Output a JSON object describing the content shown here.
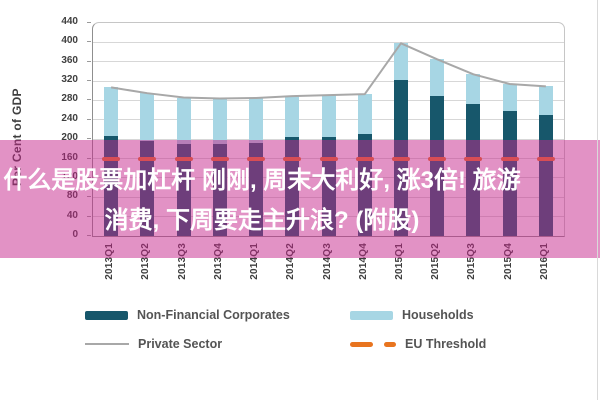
{
  "chart_data": {
    "type": "bar",
    "subtype": "stacked-bar-with-line",
    "title": "",
    "xlabel": "",
    "ylabel": "Per Cent of GDP",
    "ylim": [
      0,
      440
    ],
    "ytick_step": 40,
    "grid": true,
    "legend_position": "bottom",
    "categories": [
      "2013Q1",
      "2013Q2",
      "2013Q3",
      "2013Q4",
      "2014Q1",
      "2014Q2",
      "2014Q3",
      "2014Q4",
      "2015Q1",
      "2015Q2",
      "2015Q3",
      "2015Q4",
      "2016Q1"
    ],
    "series": [
      {
        "name": "Non-Financial Corporates",
        "role": "bar",
        "color": "#17576b",
        "values": [
          207,
          196,
          191,
          190,
          193,
          204,
          205,
          210,
          323,
          290,
          272,
          258,
          250
        ]
      },
      {
        "name": "Households",
        "role": "bar",
        "color": "#a7d6e4",
        "values": [
          100,
          99,
          95,
          94,
          92,
          85,
          86,
          83,
          75,
          75,
          62,
          56,
          59
        ]
      },
      {
        "name": "Private Sector",
        "role": "line",
        "color": "#a8a8a8",
        "values": [
          307,
          295,
          286,
          284,
          285,
          289,
          291,
          293,
          398,
          365,
          334,
          314,
          309
        ]
      },
      {
        "name": "EU Threshold",
        "role": "threshold",
        "color": "#e8741f",
        "value": 160
      }
    ]
  },
  "banner": {
    "overlay_color": "rgba(197,37,139,0.5)",
    "text_color": "#ffffff",
    "lines": [
      "什么是股票加杠杆 刚刚, 周末大利好, 涨3倍! 旅游",
      "消费, 下周要走主升浪? (附股)"
    ]
  },
  "axis_colors": {
    "grid": "#d7d7d7",
    "axis": "#8f8f8f",
    "tick_text": "#3f3f3f",
    "legend_text": "#545454"
  }
}
